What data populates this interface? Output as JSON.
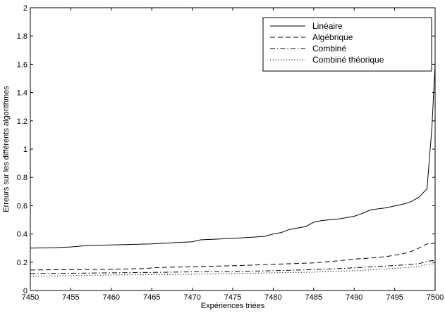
{
  "chart_data": {
    "type": "line",
    "title": "",
    "xlabel": "Expériences triées",
    "ylabel": "Erreurs sur les différents algorithmes",
    "xlim": [
      7450,
      7500
    ],
    "ylim": [
      0,
      2
    ],
    "xticks": [
      7450,
      7455,
      7460,
      7465,
      7470,
      7475,
      7480,
      7485,
      7490,
      7495,
      7500
    ],
    "yticks": [
      0,
      0.2,
      0.4,
      0.6,
      0.8,
      1,
      1.2,
      1.4,
      1.6,
      1.8,
      2
    ],
    "grid": false,
    "legend_position": "top-right",
    "series": [
      {
        "name": "Linéaire",
        "style": "solid",
        "points": [
          [
            7450,
            0.3
          ],
          [
            7453,
            0.303
          ],
          [
            7455,
            0.308
          ],
          [
            7457,
            0.318
          ],
          [
            7460,
            0.322
          ],
          [
            7465,
            0.33
          ],
          [
            7470,
            0.345
          ],
          [
            7471,
            0.358
          ],
          [
            7473,
            0.363
          ],
          [
            7476,
            0.372
          ],
          [
            7479,
            0.383
          ],
          [
            7480,
            0.4
          ],
          [
            7481,
            0.41
          ],
          [
            7482,
            0.432
          ],
          [
            7484,
            0.452
          ],
          [
            7485,
            0.482
          ],
          [
            7486,
            0.495
          ],
          [
            7488,
            0.505
          ],
          [
            7490,
            0.525
          ],
          [
            7491,
            0.545
          ],
          [
            7492,
            0.57
          ],
          [
            7494,
            0.585
          ],
          [
            7495,
            0.598
          ],
          [
            7496,
            0.61
          ],
          [
            7497,
            0.628
          ],
          [
            7498,
            0.66
          ],
          [
            7499,
            0.72
          ],
          [
            7499.6,
            1.15
          ],
          [
            7500,
            1.6
          ]
        ]
      },
      {
        "name": "Algébrique",
        "style": "dashed",
        "points": [
          [
            7450,
            0.145
          ],
          [
            7455,
            0.148
          ],
          [
            7460,
            0.15
          ],
          [
            7464,
            0.155
          ],
          [
            7466,
            0.163
          ],
          [
            7470,
            0.168
          ],
          [
            7475,
            0.175
          ],
          [
            7480,
            0.185
          ],
          [
            7485,
            0.195
          ],
          [
            7488,
            0.21
          ],
          [
            7490,
            0.222
          ],
          [
            7492,
            0.23
          ],
          [
            7494,
            0.24
          ],
          [
            7496,
            0.26
          ],
          [
            7497,
            0.275
          ],
          [
            7498,
            0.3
          ],
          [
            7499,
            0.33
          ],
          [
            7500,
            0.335
          ]
        ]
      },
      {
        "name": "Combiné",
        "style": "dashdot",
        "points": [
          [
            7450,
            0.12
          ],
          [
            7455,
            0.122
          ],
          [
            7460,
            0.125
          ],
          [
            7465,
            0.128
          ],
          [
            7470,
            0.132
          ],
          [
            7475,
            0.135
          ],
          [
            7480,
            0.14
          ],
          [
            7485,
            0.148
          ],
          [
            7490,
            0.16
          ],
          [
            7493,
            0.17
          ],
          [
            7496,
            0.18
          ],
          [
            7498,
            0.19
          ],
          [
            7499,
            0.205
          ],
          [
            7500,
            0.215
          ]
        ]
      },
      {
        "name": "Combiné théorique",
        "style": "dotted",
        "points": [
          [
            7450,
            0.1
          ],
          [
            7455,
            0.105
          ],
          [
            7460,
            0.11
          ],
          [
            7465,
            0.112
          ],
          [
            7470,
            0.115
          ],
          [
            7475,
            0.12
          ],
          [
            7480,
            0.125
          ],
          [
            7485,
            0.13
          ],
          [
            7490,
            0.14
          ],
          [
            7493,
            0.15
          ],
          [
            7496,
            0.16
          ],
          [
            7498,
            0.17
          ],
          [
            7499,
            0.185
          ],
          [
            7500,
            0.19
          ]
        ]
      }
    ]
  }
}
